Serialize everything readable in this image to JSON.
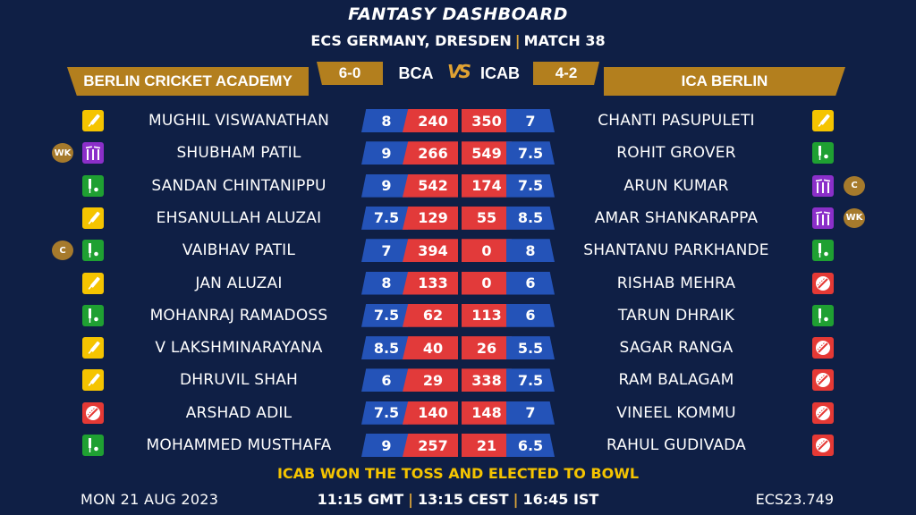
{
  "header": {
    "title": "FANTASY DASHBOARD",
    "subtitle_left": "ECS GERMANY, DRESDEN",
    "subtitle_right": "MATCH 38"
  },
  "teams": {
    "left": {
      "name": "BERLIN CRICKET ACADEMY",
      "abbr": "BCA",
      "record": "6-0"
    },
    "right": {
      "name": "ICA BERLIN",
      "abbr": "ICAB",
      "record": "4-2"
    },
    "vs_label": "VS"
  },
  "rows": [
    {
      "l_name": "MUGHIL VISWANATHAN",
      "l_role": "bat",
      "l_badge": "",
      "l_credit": "8",
      "l_points": "240",
      "r_points": "350",
      "r_credit": "7",
      "r_name": "CHANTI PASUPULETI",
      "r_role": "bat",
      "r_badge": ""
    },
    {
      "l_name": "SHUBHAM PATIL",
      "l_role": "wk",
      "l_badge": "WK",
      "l_credit": "9",
      "l_points": "266",
      "r_points": "549",
      "r_credit": "7.5",
      "r_name": "ROHIT GROVER",
      "r_role": "ar",
      "r_badge": ""
    },
    {
      "l_name": "SANDAN CHINTANIPPU",
      "l_role": "ar",
      "l_badge": "",
      "l_credit": "9",
      "l_points": "542",
      "r_points": "174",
      "r_credit": "7.5",
      "r_name": "ARUN KUMAR",
      "r_role": "wk",
      "r_badge": "C"
    },
    {
      "l_name": "EHSANULLAH ALUZAI",
      "l_role": "bat",
      "l_badge": "",
      "l_credit": "7.5",
      "l_points": "129",
      "r_points": "55",
      "r_credit": "8.5",
      "r_name": "AMAR SHANKARAPPA",
      "r_role": "wk",
      "r_badge": "WK"
    },
    {
      "l_name": "VAIBHAV PATIL",
      "l_role": "ar",
      "l_badge": "C",
      "l_credit": "7",
      "l_points": "394",
      "r_points": "0",
      "r_credit": "8",
      "r_name": "SHANTANU PARKHANDE",
      "r_role": "ar",
      "r_badge": ""
    },
    {
      "l_name": "JAN ALUZAI",
      "l_role": "bat",
      "l_badge": "",
      "l_credit": "8",
      "l_points": "133",
      "r_points": "0",
      "r_credit": "6",
      "r_name": "RISHAB MEHRA",
      "r_role": "bowl",
      "r_badge": ""
    },
    {
      "l_name": "MOHANRAJ RAMADOSS",
      "l_role": "ar",
      "l_badge": "",
      "l_credit": "7.5",
      "l_points": "62",
      "r_points": "113",
      "r_credit": "6",
      "r_name": "TARUN DHRAIK",
      "r_role": "ar",
      "r_badge": ""
    },
    {
      "l_name": "V LAKSHMINARAYANA",
      "l_role": "bat",
      "l_badge": "",
      "l_credit": "8.5",
      "l_points": "40",
      "r_points": "26",
      "r_credit": "5.5",
      "r_name": "SAGAR RANGA",
      "r_role": "bowl",
      "r_badge": ""
    },
    {
      "l_name": "DHRUVIL SHAH",
      "l_role": "bat",
      "l_badge": "",
      "l_credit": "6",
      "l_points": "29",
      "r_points": "338",
      "r_credit": "7.5",
      "r_name": "RAM BALAGAM",
      "r_role": "bowl",
      "r_badge": ""
    },
    {
      "l_name": "ARSHAD ADIL",
      "l_role": "bowl",
      "l_badge": "",
      "l_credit": "7.5",
      "l_points": "140",
      "r_points": "148",
      "r_credit": "7",
      "r_name": "VINEEL KOMMU",
      "r_role": "bowl",
      "r_badge": ""
    },
    {
      "l_name": "MOHAMMED MUSTHAFA",
      "l_role": "ar",
      "l_badge": "",
      "l_credit": "9",
      "l_points": "257",
      "r_points": "21",
      "r_credit": "6.5",
      "r_name": "RAHUL GUDIVADA",
      "r_role": "bowl",
      "r_badge": ""
    }
  ],
  "toss": "ICAB WON THE TOSS AND ELECTED TO BOWL",
  "footer": {
    "date": "MON 21 AUG 2023",
    "time_gmt": "11:15 GMT",
    "time_cest": "13:15 CEST",
    "time_ist": "16:45 IST",
    "code": "ECS23.749"
  },
  "role_icons": {
    "bat": "bat-icon",
    "ar": "allrounder-icon",
    "wk": "wicketkeeper-icon",
    "bowl": "ball-icon"
  },
  "colors": {
    "background": "#0f1f45",
    "gold": "#b37f1e",
    "credit_blue": "#2453b8",
    "points_red": "#e23a3a",
    "toss_yellow": "#f5c400"
  }
}
